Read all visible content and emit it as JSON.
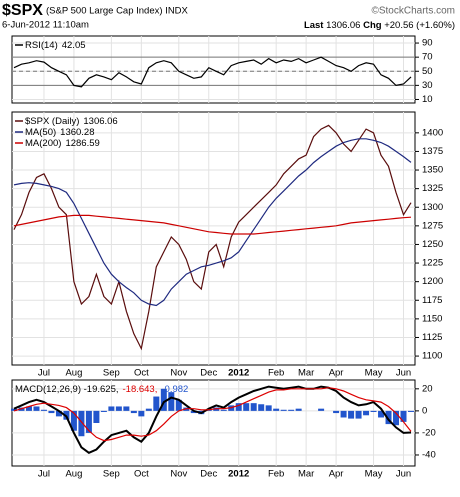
{
  "header": {
    "symbol": "$SPX",
    "name": "(S&P 500 Large Cap Index) INDX",
    "watermark": "©StockCharts.com",
    "date": "6-Jun-2012 11:10am",
    "last_label": "Last",
    "last": "1306.06",
    "chg_label": "Chg",
    "chg": "+20.56 (+1.60%)"
  },
  "chart_data": [
    {
      "type": "line",
      "ylim": [
        5,
        100
      ],
      "yticks": [
        90,
        70,
        50,
        30,
        10
      ],
      "grid": true,
      "levels": [
        70,
        50,
        30
      ],
      "series": [
        {
          "name": "RSI(14)",
          "color": "#000000",
          "values": [
            55,
            60,
            62,
            65,
            63,
            55,
            50,
            45,
            30,
            28,
            40,
            45,
            42,
            38,
            48,
            42,
            35,
            32,
            55,
            62,
            65,
            62,
            50,
            45,
            40,
            42,
            55,
            50,
            45,
            58,
            62,
            64,
            66,
            60,
            68,
            62,
            66,
            64,
            68,
            62,
            66,
            70,
            64,
            58,
            55,
            50,
            58,
            62,
            60,
            45,
            40,
            30,
            32,
            42.05
          ]
        }
      ]
    },
    {
      "type": "line",
      "ylim": [
        1088,
        1428
      ],
      "yticks": [
        1400,
        1375,
        1350,
        1325,
        1300,
        1275,
        1250,
        1225,
        1200,
        1175,
        1150,
        1125,
        1100
      ],
      "grid": true,
      "categories": [
        null,
        null,
        null,
        null,
        "Jul",
        null,
        null,
        null,
        "Aug",
        null,
        null,
        null,
        null,
        "Sep",
        null,
        null,
        null,
        "Oct",
        null,
        null,
        null,
        null,
        "Nov",
        null,
        null,
        null,
        "Dec",
        null,
        null,
        null,
        "2012",
        null,
        null,
        null,
        null,
        "Feb",
        null,
        null,
        null,
        "Mar",
        null,
        null,
        null,
        "Apr",
        null,
        null,
        null,
        null,
        "May",
        null,
        null,
        null,
        "Jun",
        null
      ],
      "series": [
        {
          "name": "$SPX (Daily)",
          "color": "#5a0d0d",
          "values": [
            1270,
            1290,
            1320,
            1340,
            1345,
            1325,
            1300,
            1290,
            1200,
            1170,
            1180,
            1210,
            1180,
            1170,
            1200,
            1160,
            1130,
            1110,
            1160,
            1220,
            1240,
            1260,
            1250,
            1230,
            1200,
            1190,
            1240,
            1250,
            1220,
            1260,
            1280,
            1290,
            1300,
            1310,
            1320,
            1330,
            1345,
            1355,
            1365,
            1370,
            1395,
            1405,
            1410,
            1400,
            1385,
            1375,
            1390,
            1405,
            1400,
            1370,
            1355,
            1320,
            1290,
            1306.06
          ]
        },
        {
          "name": "MA(50)",
          "color": "#1f2a80",
          "values": [
            1330,
            1332,
            1333,
            1332,
            1330,
            1328,
            1325,
            1320,
            1305,
            1285,
            1265,
            1245,
            1225,
            1210,
            1200,
            1192,
            1185,
            1175,
            1170,
            1168,
            1175,
            1190,
            1200,
            1210,
            1215,
            1220,
            1222,
            1225,
            1228,
            1232,
            1240,
            1255,
            1270,
            1285,
            1300,
            1312,
            1322,
            1332,
            1342,
            1350,
            1360,
            1368,
            1375,
            1382,
            1387,
            1390,
            1392,
            1392,
            1390,
            1387,
            1382,
            1375,
            1368,
            1360.28
          ]
        },
        {
          "name": "MA(200)",
          "color": "#cc0000",
          "values": [
            1275,
            1277,
            1279,
            1281,
            1283,
            1285,
            1287,
            1288,
            1289,
            1289,
            1289,
            1288,
            1287,
            1286,
            1285,
            1284,
            1283,
            1282,
            1281,
            1280,
            1279,
            1277,
            1275,
            1273,
            1271,
            1269,
            1267,
            1266,
            1265,
            1264,
            1264,
            1264,
            1264,
            1265,
            1266,
            1267,
            1268,
            1269,
            1270,
            1271,
            1272,
            1273,
            1274,
            1275,
            1277,
            1279,
            1280,
            1281,
            1282,
            1283,
            1284,
            1285,
            1286,
            1286.59
          ]
        }
      ]
    },
    {
      "type": "line",
      "ylim": [
        -50,
        28
      ],
      "yticks": [
        20,
        0,
        -20,
        -40
      ],
      "grid": true,
      "categories": [
        null,
        null,
        null,
        null,
        "Jul",
        null,
        null,
        null,
        "Aug",
        null,
        null,
        null,
        null,
        "Sep",
        null,
        null,
        null,
        "Oct",
        null,
        null,
        null,
        null,
        "Nov",
        null,
        null,
        null,
        "Dec",
        null,
        null,
        null,
        "2012",
        null,
        null,
        null,
        null,
        "Feb",
        null,
        null,
        null,
        "Mar",
        null,
        null,
        null,
        "Apr",
        null,
        null,
        null,
        null,
        "May",
        null,
        null,
        null,
        "Jun",
        null
      ],
      "legend": [
        {
          "text": "MACD(12,26,9) -19.625,",
          "color": "#000000"
        },
        {
          "text": "-18.643,",
          "color": "#dd0000"
        },
        {
          "text": "-0.982",
          "color": "#2255cc"
        }
      ],
      "series": [
        {
          "type": "bar",
          "color": "#2255cc",
          "values": [
            2,
            3,
            4,
            4,
            1,
            -2,
            -5,
            -8,
            -18,
            -23,
            -20,
            -11,
            -1,
            4,
            4,
            4,
            -2,
            -5,
            2,
            13,
            20,
            17,
            10,
            3,
            -2,
            -3,
            1,
            3,
            1,
            5,
            7,
            7,
            7,
            6,
            5,
            2,
            1,
            1,
            2,
            0,
            0,
            2,
            0,
            -2,
            -6,
            -7,
            -7,
            -4,
            -1,
            -6,
            -12,
            -13,
            -10,
            -0.982
          ]
        },
        {
          "color": "#000000",
          "width": 2,
          "values": [
            2,
            5,
            8,
            10,
            8,
            4,
            0,
            -5,
            -20,
            -33,
            -38,
            -35,
            -28,
            -22,
            -20,
            -18,
            -24,
            -28,
            -20,
            -5,
            8,
            12,
            10,
            5,
            0,
            -2,
            2,
            5,
            3,
            8,
            12,
            15,
            18,
            20,
            22,
            21,
            20,
            21,
            22,
            20,
            20,
            22,
            21,
            18,
            12,
            8,
            5,
            6,
            8,
            2,
            -8,
            -15,
            -20,
            -19.625
          ]
        },
        {
          "color": "#dd0000",
          "values": [
            0,
            2,
            4,
            6,
            7,
            6,
            5,
            3,
            -2,
            -10,
            -18,
            -24,
            -27,
            -26,
            -24,
            -22,
            -22,
            -23,
            -22,
            -18,
            -12,
            -5,
            0,
            2,
            2,
            1,
            1,
            2,
            2,
            3,
            5,
            8,
            11,
            14,
            17,
            19,
            19,
            20,
            20,
            20,
            20,
            20,
            21,
            20,
            18,
            15,
            12,
            10,
            9,
            8,
            4,
            -2,
            -10,
            -18.643
          ]
        }
      ]
    }
  ]
}
